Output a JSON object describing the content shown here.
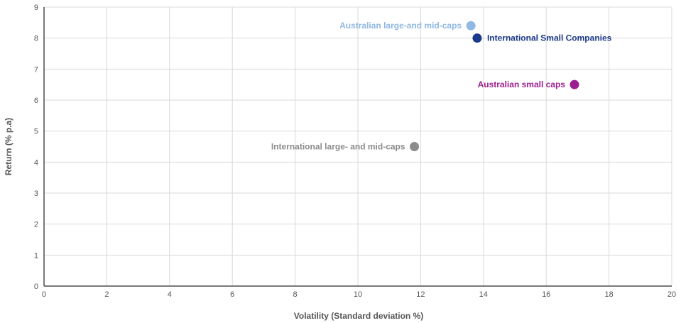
{
  "chart_data": {
    "type": "scatter",
    "title": "",
    "xlabel": "Volatility (Standard deviation %)",
    "ylabel": "Return (% p.a)",
    "xlim": [
      0,
      20
    ],
    "ylim": [
      0,
      9
    ],
    "xticks": [
      0,
      2,
      4,
      6,
      8,
      10,
      12,
      14,
      16,
      18,
      20
    ],
    "yticks": [
      0,
      1,
      2,
      3,
      4,
      5,
      6,
      7,
      8,
      9
    ],
    "grid": true,
    "legend": "none",
    "points": [
      {
        "name": "Australian large-and mid-caps",
        "x": 13.6,
        "y": 8.4,
        "color": "#8fb8e3",
        "label_side": "left"
      },
      {
        "name": "International Small Companies",
        "x": 13.8,
        "y": 8.0,
        "color": "#1b3a8c",
        "label_side": "right"
      },
      {
        "name": "Australian small caps",
        "x": 16.9,
        "y": 6.5,
        "color": "#9b1f8f",
        "label_side": "left"
      },
      {
        "name": "International large- and mid-caps",
        "x": 11.8,
        "y": 4.5,
        "color": "#8c8c8c",
        "label_side": "left"
      }
    ]
  }
}
